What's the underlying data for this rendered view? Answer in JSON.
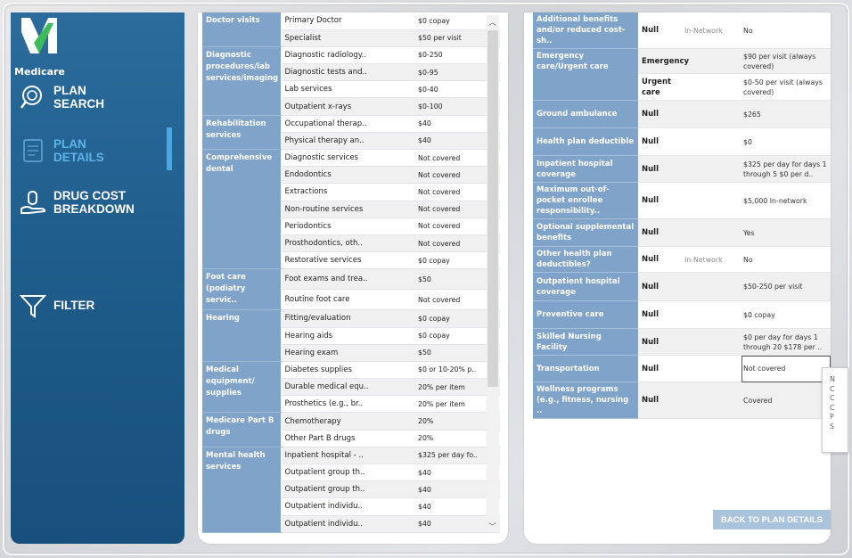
{
  "app": {
    "logo_text": "Medicare"
  },
  "sidebar": {
    "items": [
      {
        "label": "PLAN\nSEARCH",
        "icon": "search-badge-icon",
        "active": false
      },
      {
        "label": "PLAN\nDETAILS",
        "icon": "document-icon",
        "active": true
      },
      {
        "label": "DRUG COST\nBREAKDOWN",
        "icon": "hand-coin-icon",
        "active": false
      },
      {
        "label": "FILTER",
        "icon": "funnel-icon",
        "active": false
      }
    ],
    "colors": {
      "bg": "#1f5d8c",
      "active": "#5eb3e6"
    }
  },
  "benefits": {
    "rows": [
      {
        "cat": "Doctor visits",
        "span": 2,
        "service": "Primary Doctor",
        "cost": "$0 copay"
      },
      {
        "service": "Specialist",
        "cost": "$50 per visit"
      },
      {
        "cat": "Diagnostic procedures/lab services/imaging",
        "span": 4,
        "service": "Diagnostic radiology..",
        "cost": "$0-250"
      },
      {
        "service": "Diagnostic tests and..",
        "cost": "$0-95"
      },
      {
        "service": "Lab services",
        "cost": "$0-40"
      },
      {
        "service": "Outpatient x-rays",
        "cost": "$0-100"
      },
      {
        "cat": "Rehabilitation services",
        "span": 2,
        "service": "Occupational therap..",
        "cost": "$40"
      },
      {
        "service": "Physical therapy an..",
        "cost": "$40"
      },
      {
        "cat": "Comprehensive dental",
        "span": 7,
        "service": "Diagnostic services",
        "cost": "Not covered"
      },
      {
        "service": "Endodontics",
        "cost": "Not covered"
      },
      {
        "service": "Extractions",
        "cost": "Not covered"
      },
      {
        "service": "Non-routine services",
        "cost": "Not covered"
      },
      {
        "service": "Periodontics",
        "cost": "Not covered"
      },
      {
        "service": "Prosthodontics, oth..",
        "cost": "Not covered"
      },
      {
        "service": "Restorative services",
        "cost": "$0 copay"
      },
      {
        "cat": "Foot care (podiatry servic..",
        "span": 2,
        "service": "Foot exams and trea..",
        "cost": "$50"
      },
      {
        "service": "Routine foot care",
        "cost": "Not covered"
      },
      {
        "cat": "Hearing",
        "span": 3,
        "service": "Fitting/evaluation",
        "cost": "$0 copay"
      },
      {
        "service": "Hearing aids",
        "cost": "$0 copay"
      },
      {
        "service": "Hearing exam",
        "cost": "$50"
      },
      {
        "cat": "Medical equipment/ supplies",
        "span": 3,
        "service": "Diabetes supplies",
        "cost": "$0 or 10-20% p.."
      },
      {
        "service": "Durable medical equ..",
        "cost": "20% per item"
      },
      {
        "service": "Prosthetics (e.g., br..",
        "cost": "20% per item"
      },
      {
        "cat": "Medicare Part B drugs",
        "span": 2,
        "service": "Chemotherapy",
        "cost": "20%"
      },
      {
        "service": "Other Part B drugs",
        "cost": "20%"
      },
      {
        "cat": "Mental health services",
        "span": 5,
        "service": "Inpatient hospital - ..",
        "cost": "$325 per day fo.."
      },
      {
        "service": "Outpatient group th..",
        "cost": "$40"
      },
      {
        "service": "Outpatient group th..",
        "cost": "$40"
      },
      {
        "service": "Outpatient individu..",
        "cost": "$40"
      },
      {
        "service": "Outpatient individu..",
        "cost": "$40"
      }
    ]
  },
  "summary": {
    "rows": [
      {
        "cat": "Additional benefits and/or reduced cost-sh..",
        "span": 1,
        "prov": "Null",
        "net": "In-Network",
        "val": "No",
        "h": 28
      },
      {
        "cat": "Emergency care/Urgent care",
        "span": 2,
        "prov": "Emergency",
        "net": "",
        "val": "$90 per visit (always covered)",
        "h": 28
      },
      {
        "prov": "Urgent care",
        "net": "",
        "val": "$0-50 per visit (always covered)",
        "h": 30
      },
      {
        "cat": "Ground ambulance",
        "span": 1,
        "prov": "Null",
        "net": "",
        "val": "$265",
        "h": 31
      },
      {
        "cat": "Health plan deductible",
        "span": 1,
        "prov": "Null",
        "net": "",
        "val": "$0",
        "h": 31
      },
      {
        "cat": "Inpatient hospital coverage",
        "span": 1,
        "prov": "Null",
        "net": "",
        "val": "$325 per day for days 1 through 5 $0 per d..",
        "h": 30
      },
      {
        "cat": "Maximum out-of-pocket enrollee responsibility..",
        "span": 1,
        "prov": "Null",
        "net": "",
        "val": "$5,000 In-network",
        "h": 30
      },
      {
        "cat": "Optional supplemental benefits",
        "span": 1,
        "prov": "Null",
        "net": "",
        "val": "Yes",
        "h": 31
      },
      {
        "cat": "Other health plan deductibles?",
        "span": 1,
        "prov": "Null",
        "net": "In-Network",
        "val": "No",
        "h": 29
      },
      {
        "cat": "Outpatient hospital coverage",
        "span": 1,
        "prov": "Null",
        "net": "",
        "val": "$50-250 per visit",
        "h": 32
      },
      {
        "cat": "Preventive care",
        "span": 1,
        "prov": "Null",
        "net": "",
        "val": "$0 copay",
        "h": 31
      },
      {
        "cat": "Skilled Nursing Facility",
        "span": 1,
        "prov": "Null",
        "net": "",
        "val": "$0 per day for days 1 through 20 $178 per ..",
        "h": 30
      },
      {
        "cat": "Transportation",
        "span": 1,
        "prov": "Null",
        "net": "",
        "val": "Not covered",
        "h": 30,
        "boxed": true
      },
      {
        "cat": "Wellness programs (e.g., fitness, nursing ..",
        "span": 1,
        "prov": "Null",
        "net": "",
        "val": "Covered",
        "h": 30
      }
    ]
  },
  "actions": {
    "back_label": "BACK TO PLAN DETAILS"
  },
  "tooltip": {
    "lines": [
      "N",
      "C",
      "C",
      "C",
      "P",
      "S"
    ]
  }
}
